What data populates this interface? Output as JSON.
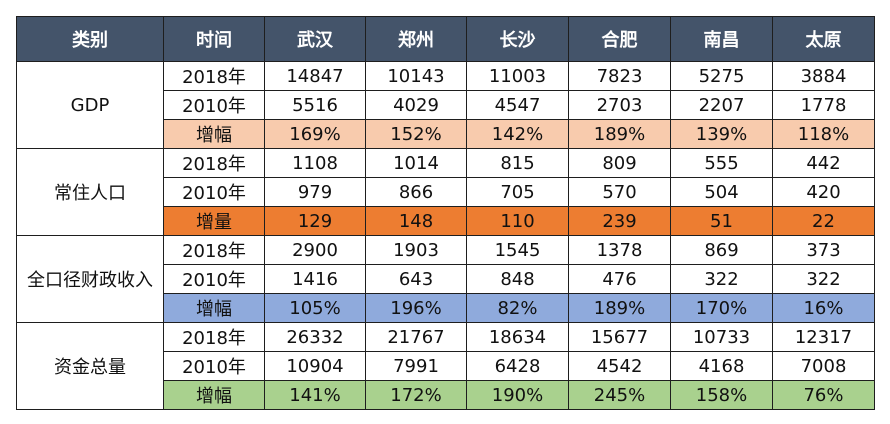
{
  "header": [
    "类别",
    "时间",
    "武汉",
    "郑州",
    "长沙",
    "合肥",
    "南昌",
    "太原"
  ],
  "groups": [
    {
      "category": "GDP",
      "rows": [
        {
          "period": "2018年",
          "values": [
            "14847",
            "10143",
            "11003",
            "7823",
            "5275",
            "3884"
          ]
        },
        {
          "period": "2010年",
          "values": [
            "5516",
            "4029",
            "4547",
            "2703",
            "2207",
            "1778"
          ]
        },
        {
          "period": "增幅",
          "values": [
            "169%",
            "152%",
            "142%",
            "189%",
            "139%",
            "118%"
          ]
        }
      ]
    },
    {
      "category": "常住人口",
      "rows": [
        {
          "period": "2018年",
          "values": [
            "1108",
            "1014",
            "815",
            "809",
            "555",
            "442"
          ]
        },
        {
          "period": "2010年",
          "values": [
            "979",
            "866",
            "705",
            "570",
            "504",
            "420"
          ]
        },
        {
          "period": "增量",
          "values": [
            "129",
            "148",
            "110",
            "239",
            "51",
            "22"
          ]
        }
      ]
    },
    {
      "category": "全口径财政收入",
      "rows": [
        {
          "period": "2018年",
          "values": [
            "2900",
            "1903",
            "1545",
            "1378",
            "869",
            "373"
          ]
        },
        {
          "period": "2010年",
          "values": [
            "1416",
            "643",
            "848",
            "476",
            "322",
            "322"
          ]
        },
        {
          "period": "增幅",
          "values": [
            "105%",
            "196%",
            "82%",
            "189%",
            "170%",
            "16%"
          ]
        }
      ]
    },
    {
      "category": "资金总量",
      "rows": [
        {
          "period": "2018年",
          "values": [
            "26332",
            "21767",
            "18634",
            "15677",
            "10733",
            "12317"
          ]
        },
        {
          "period": "2010年",
          "values": [
            "10904",
            "7991",
            "6428",
            "4542",
            "4168",
            "7008"
          ]
        },
        {
          "period": "增幅",
          "values": [
            "141%",
            "172%",
            "190%",
            "245%",
            "158%",
            "76%"
          ]
        }
      ]
    }
  ],
  "colors": {
    "header_bg": "#44546a",
    "gdp_growth": "#f8cbad",
    "population_growth": "#ed7d31",
    "revenue_growth": "#8faadc",
    "capital_growth": "#a9d18e"
  }
}
